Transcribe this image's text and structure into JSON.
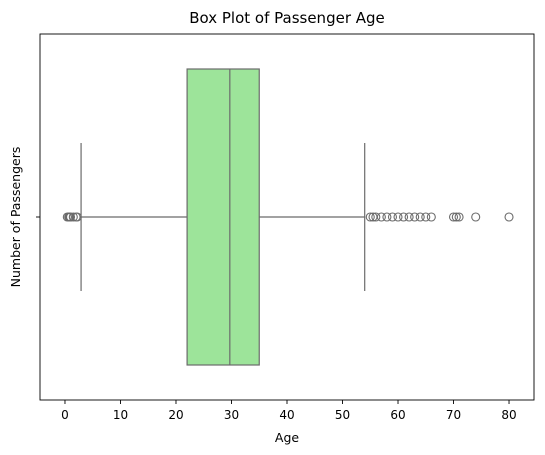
{
  "chart_data": {
    "type": "box",
    "title": "Box Plot of Passenger Age",
    "xlabel": "Age",
    "ylabel": "Number of Passengers",
    "xlim": [
      -4.5,
      84.5
    ],
    "xticks": [
      0,
      10,
      20,
      30,
      40,
      50,
      60,
      70,
      80
    ],
    "xtick_labels": [
      "0",
      "10",
      "20",
      "30",
      "40",
      "50",
      "60",
      "70",
      "80"
    ],
    "orientation": "horizontal",
    "grid": false,
    "box": {
      "whisker_low": 2.9,
      "q1": 22,
      "median": 29.7,
      "q3": 35,
      "whisker_high": 54,
      "fill_color": "#9de49a",
      "line_color": "#6b6b6b"
    },
    "outliers": [
      0.42,
      0.67,
      0.75,
      0.83,
      0.92,
      1,
      1.5,
      2,
      2.2,
      55,
      55.5,
      56,
      57,
      58,
      59,
      60,
      61,
      62,
      63,
      64,
      65,
      66,
      70,
      70.5,
      71,
      74,
      80
    ]
  }
}
